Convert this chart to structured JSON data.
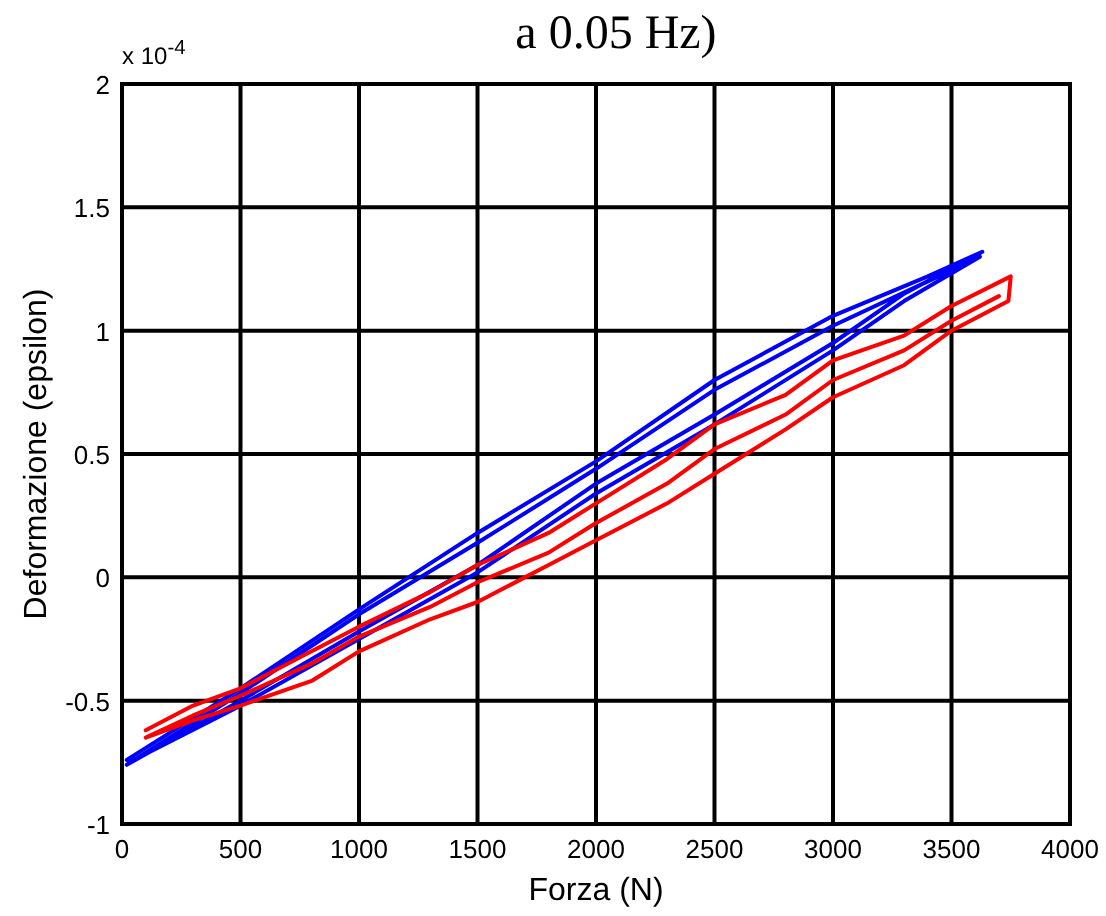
{
  "chart_data": {
    "type": "line",
    "title": "a 0.05 Hz)",
    "xlabel": "Forza (N)",
    "ylabel": "Deformazione (epsilon)",
    "annotations": [
      "x 10$^{-4}$"
    ],
    "xlim": [
      0,
      4000
    ],
    "xticks": [
      0,
      500,
      1000,
      1500,
      2000,
      2500,
      3000,
      3500,
      4000
    ],
    "ylim": [
      -1,
      2
    ],
    "yticks": [
      -1,
      -0.5,
      0,
      0.5,
      1,
      1.5,
      2
    ],
    "grid": true,
    "series": [
      {
        "color": "#0000ff",
        "x": [
          20,
          500,
          1000,
          1500,
          2000,
          2500,
          3000,
          3400,
          3630,
          3300,
          3000,
          2500,
          2000,
          1500,
          1000,
          500,
          20,
          500,
          1000,
          1500,
          2000,
          2500,
          3000,
          3400,
          3620,
          3300,
          3000,
          2500,
          2000,
          1500,
          1000,
          500,
          30
        ],
        "values": [
          -0.74,
          -0.45,
          -0.13,
          0.18,
          0.47,
          0.8,
          1.06,
          1.22,
          1.32,
          1.15,
          0.95,
          0.66,
          0.38,
          0.05,
          -0.22,
          -0.5,
          -0.76,
          -0.47,
          -0.15,
          0.14,
          0.44,
          0.76,
          1.02,
          1.2,
          1.3,
          1.12,
          0.92,
          0.62,
          0.34,
          0.02,
          -0.25,
          -0.52,
          -0.75
        ]
      },
      {
        "color": "#ff0000",
        "x": [
          100,
          300,
          500,
          800,
          1000,
          1300,
          1500,
          1800,
          2000,
          2300,
          2500,
          2800,
          3000,
          3300,
          3500,
          3750,
          3740,
          3500,
          3300,
          3000,
          2800,
          2500,
          2300,
          2000,
          1800,
          1500,
          1300,
          1000,
          800,
          500,
          300,
          100,
          300,
          500,
          800,
          1000,
          1300,
          1500,
          1800,
          2000,
          2300,
          2500,
          2800,
          3000,
          3300,
          3500,
          3700
        ],
        "values": [
          -0.62,
          -0.52,
          -0.45,
          -0.3,
          -0.2,
          -0.06,
          0.05,
          0.18,
          0.3,
          0.48,
          0.62,
          0.74,
          0.88,
          0.98,
          1.1,
          1.22,
          1.12,
          1.0,
          0.86,
          0.73,
          0.6,
          0.42,
          0.3,
          0.15,
          0.05,
          -0.1,
          -0.17,
          -0.3,
          -0.42,
          -0.52,
          -0.58,
          -0.65,
          -0.56,
          -0.48,
          -0.35,
          -0.24,
          -0.12,
          -0.02,
          0.1,
          0.22,
          0.38,
          0.52,
          0.66,
          0.8,
          0.92,
          1.04,
          1.14
        ]
      }
    ]
  }
}
